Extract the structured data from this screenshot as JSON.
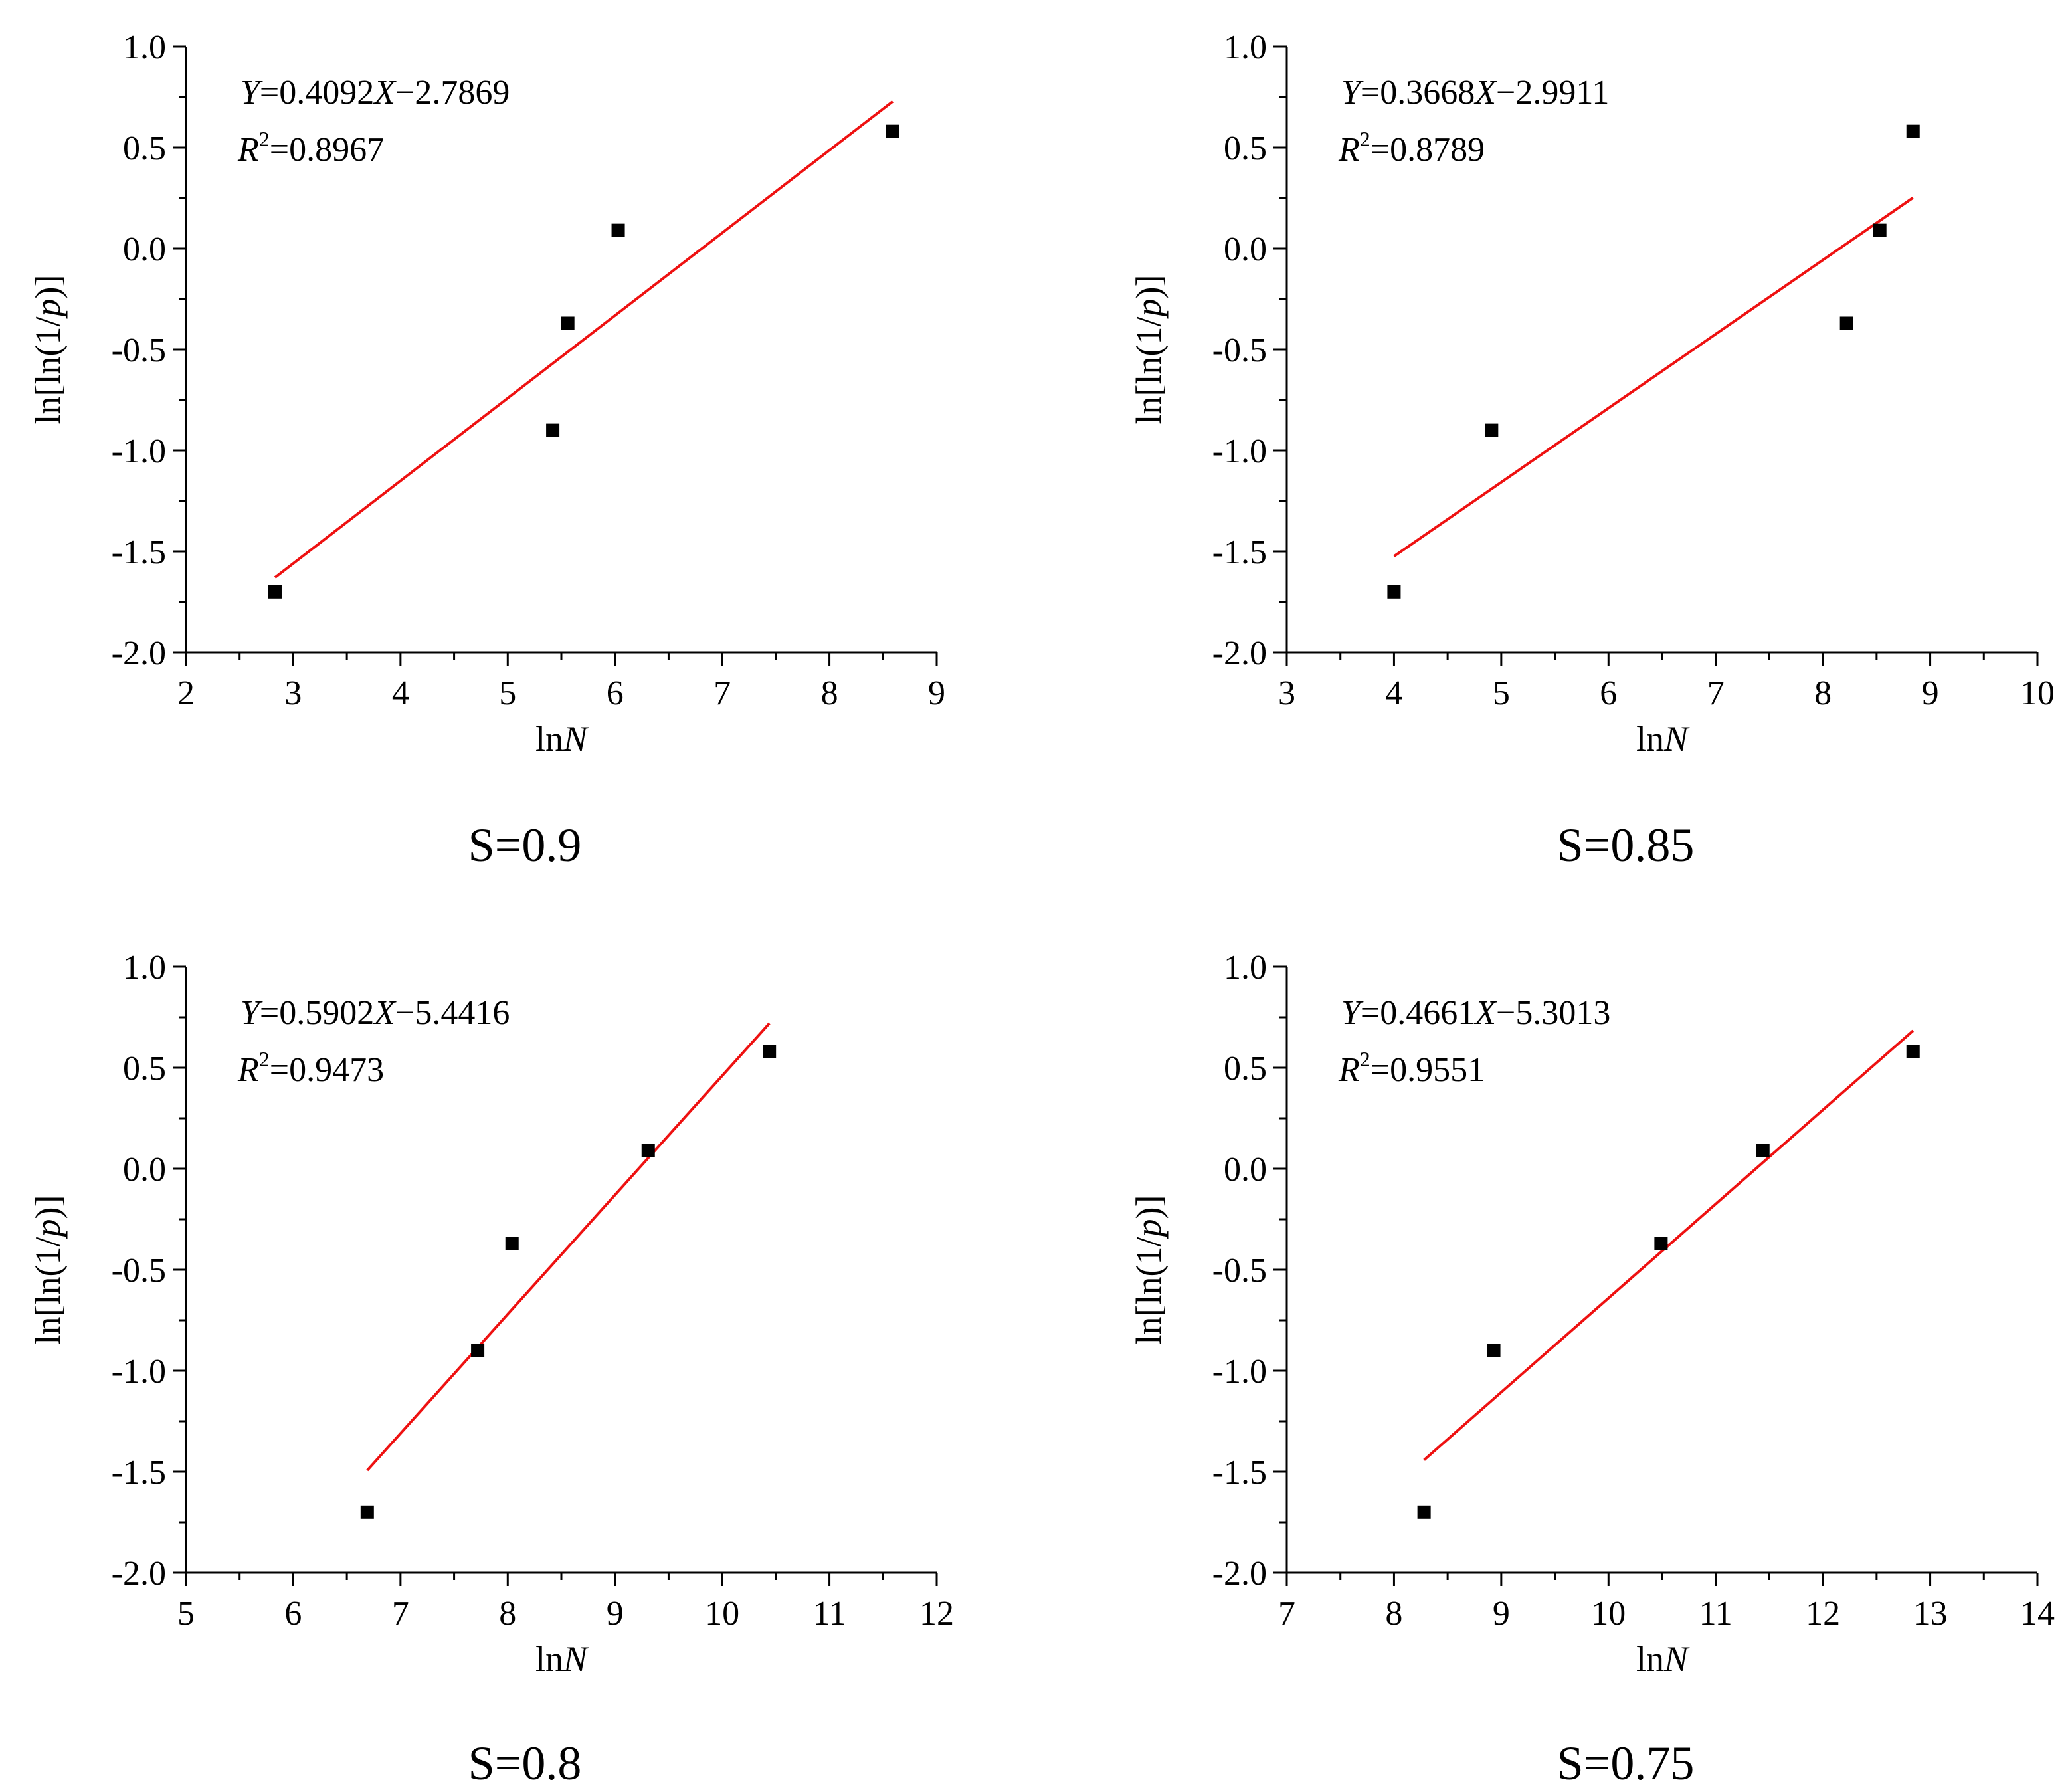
{
  "colors": {
    "fit_line": "#ee1111",
    "points": "#000000",
    "axis": "#000000",
    "background": "#ffffff"
  },
  "chart_data": [
    {
      "type": "scatter",
      "caption": "S=0.9",
      "xlabel": "lnN",
      "ylabel": "ln[ln(1/p)]",
      "xlim": [
        2,
        9
      ],
      "ylim": [
        -2.0,
        1.0
      ],
      "xticks": [
        2,
        3,
        4,
        5,
        6,
        7,
        8,
        9
      ],
      "xtick_labels": [
        "2",
        "3",
        "4",
        "5",
        "6",
        "7",
        "8",
        "9"
      ],
      "yticks": [
        -2.0,
        -1.5,
        -1.0,
        -0.5,
        0.0,
        0.5,
        1.0
      ],
      "ytick_labels": [
        "-2.0",
        "-1.5",
        "-1.0",
        "-0.5",
        "0.0",
        "0.5",
        "1.0"
      ],
      "points": {
        "x": [
          2.83,
          5.42,
          5.56,
          6.03,
          8.59
        ],
        "y": [
          -1.7,
          -0.9,
          -0.37,
          0.09,
          0.58
        ]
      },
      "fit": {
        "slope": 0.4092,
        "intercept": -2.7869,
        "x_range": [
          2.83,
          8.59
        ]
      },
      "equation": {
        "y_var": "Y",
        "x_var": "X",
        "slope": "0.4092",
        "intercept_sign": "−",
        "intercept": "2.7869",
        "r2_var": "R",
        "r2_exp": "2",
        "r2": "0.8967"
      }
    },
    {
      "type": "scatter",
      "caption": "S=0.85",
      "xlabel": "lnN",
      "ylabel": "ln[ln(1/p)]",
      "xlim": [
        3,
        10
      ],
      "ylim": [
        -2.0,
        1.0
      ],
      "xticks": [
        3,
        4,
        5,
        6,
        7,
        8,
        9,
        10
      ],
      "xtick_labels": [
        "3",
        "4",
        "5",
        "6",
        "7",
        "8",
        "9",
        "10"
      ],
      "yticks": [
        -2.0,
        -1.5,
        -1.0,
        -0.5,
        0.0,
        0.5,
        1.0
      ],
      "ytick_labels": [
        "-2.0",
        "-1.5",
        "-1.0",
        "-0.5",
        "0.0",
        "0.5",
        "1.0"
      ],
      "points": {
        "x": [
          4.0,
          4.91,
          8.22,
          8.53,
          8.84
        ],
        "y": [
          -1.7,
          -0.9,
          -0.37,
          0.09,
          0.58
        ]
      },
      "fit": {
        "slope": 0.3668,
        "intercept": -2.9911,
        "x_range": [
          4.0,
          8.84
        ]
      },
      "equation": {
        "y_var": "Y",
        "x_var": "X",
        "slope": "0.3668",
        "intercept_sign": "−",
        "intercept": "2.9911",
        "r2_var": "R",
        "r2_exp": "2",
        "r2": "0.8789"
      }
    },
    {
      "type": "scatter",
      "caption": "S=0.8",
      "xlabel": "lnN",
      "ylabel": "ln[ln(1/p)]",
      "xlim": [
        5,
        12
      ],
      "ylim": [
        -2.0,
        1.0
      ],
      "xticks": [
        5,
        6,
        7,
        8,
        9,
        10,
        11,
        12
      ],
      "xtick_labels": [
        "5",
        "6",
        "7",
        "8",
        "9",
        "10",
        "11",
        "12"
      ],
      "yticks": [
        -2.0,
        -1.5,
        -1.0,
        -0.5,
        0.0,
        0.5,
        1.0
      ],
      "ytick_labels": [
        "-2.0",
        "-1.5",
        "-1.0",
        "-0.5",
        "0.0",
        "0.5",
        "1.0"
      ],
      "points": {
        "x": [
          6.69,
          7.72,
          8.04,
          9.31,
          10.44
        ],
        "y": [
          -1.7,
          -0.9,
          -0.37,
          0.09,
          0.58
        ]
      },
      "fit": {
        "slope": 0.5902,
        "intercept": -5.4416,
        "x_range": [
          6.69,
          10.44
        ]
      },
      "equation": {
        "y_var": "Y",
        "x_var": "X",
        "slope": "0.5902",
        "intercept_sign": "−",
        "intercept": "5.4416",
        "r2_var": "R",
        "r2_exp": "2",
        "r2": "0.9473"
      }
    },
    {
      "type": "scatter",
      "caption": "S=0.75",
      "xlabel": "lnN",
      "ylabel": "ln[ln(1/p)]",
      "xlim": [
        7,
        14
      ],
      "ylim": [
        -2.0,
        1.0
      ],
      "xticks": [
        7,
        8,
        9,
        10,
        11,
        12,
        13,
        14
      ],
      "xtick_labels": [
        "7",
        "8",
        "9",
        "10",
        "11",
        "12",
        "13",
        "14"
      ],
      "yticks": [
        -2.0,
        -1.5,
        -1.0,
        -0.5,
        0.0,
        0.5,
        1.0
      ],
      "ytick_labels": [
        "-2.0",
        "-1.5",
        "-1.0",
        "-0.5",
        "0.0",
        "0.5",
        "1.0"
      ],
      "points": {
        "x": [
          8.28,
          8.93,
          10.49,
          11.44,
          12.84
        ],
        "y": [
          -1.7,
          -0.9,
          -0.37,
          0.09,
          0.58
        ]
      },
      "fit": {
        "slope": 0.4661,
        "intercept": -5.3013,
        "x_range": [
          8.28,
          12.84
        ]
      },
      "equation": {
        "y_var": "Y",
        "x_var": "X",
        "slope": "0.4661",
        "intercept_sign": "−",
        "intercept": "5.3013",
        "r2_var": "R",
        "r2_exp": "2",
        "r2": "0.9551"
      }
    }
  ]
}
